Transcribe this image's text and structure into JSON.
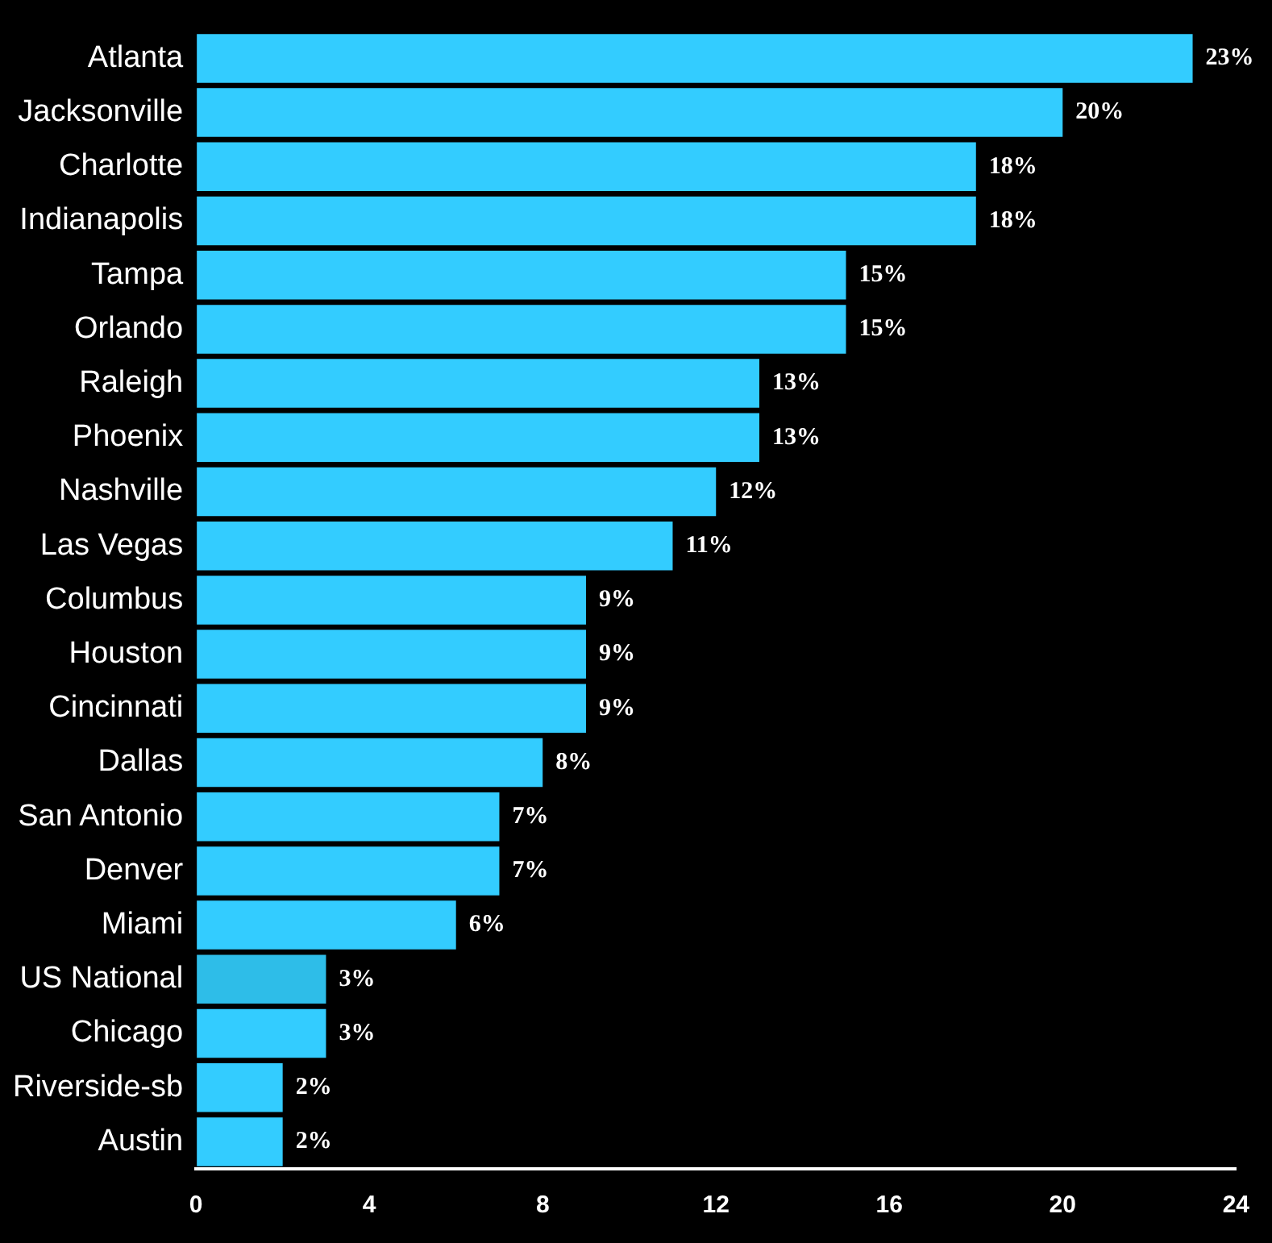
{
  "chart_data": {
    "type": "bar",
    "orientation": "horizontal",
    "categories": [
      "Atlanta",
      "Jacksonville",
      "Charlotte",
      "Indianapolis",
      "Tampa",
      "Orlando",
      "Raleigh",
      "Phoenix",
      "Nashville",
      "Las Vegas",
      "Columbus",
      "Houston",
      "Cincinnati",
      "Dallas",
      "San Antonio",
      "Denver",
      "Miami",
      "US National",
      "Chicago",
      "Riverside-sb",
      "Austin"
    ],
    "values": [
      23,
      20,
      18,
      18,
      15,
      15,
      13,
      13,
      12,
      11,
      9,
      9,
      9,
      8,
      7,
      7,
      6,
      3,
      3,
      2,
      2
    ],
    "value_labels": [
      "23%",
      "20%",
      "18%",
      "18%",
      "15%",
      "15%",
      "13%",
      "13%",
      "12%",
      "11%",
      "9%",
      "9%",
      "9%",
      "8%",
      "7%",
      "7%",
      "6%",
      "3%",
      "3%",
      "2%",
      "2%"
    ],
    "colors": [
      "#33ccff",
      "#33ccff",
      "#33ccff",
      "#33ccff",
      "#33ccff",
      "#33ccff",
      "#33ccff",
      "#33ccff",
      "#33ccff",
      "#33ccff",
      "#33ccff",
      "#33ccff",
      "#33ccff",
      "#33ccff",
      "#33ccff",
      "#33ccff",
      "#33ccff",
      "#2ebde8",
      "#33ccff",
      "#33ccff",
      "#33ccff"
    ],
    "xlim": [
      0,
      24
    ],
    "xticks": [
      0,
      4,
      8,
      12,
      16,
      20,
      24
    ],
    "grid": false,
    "legend": false
  }
}
